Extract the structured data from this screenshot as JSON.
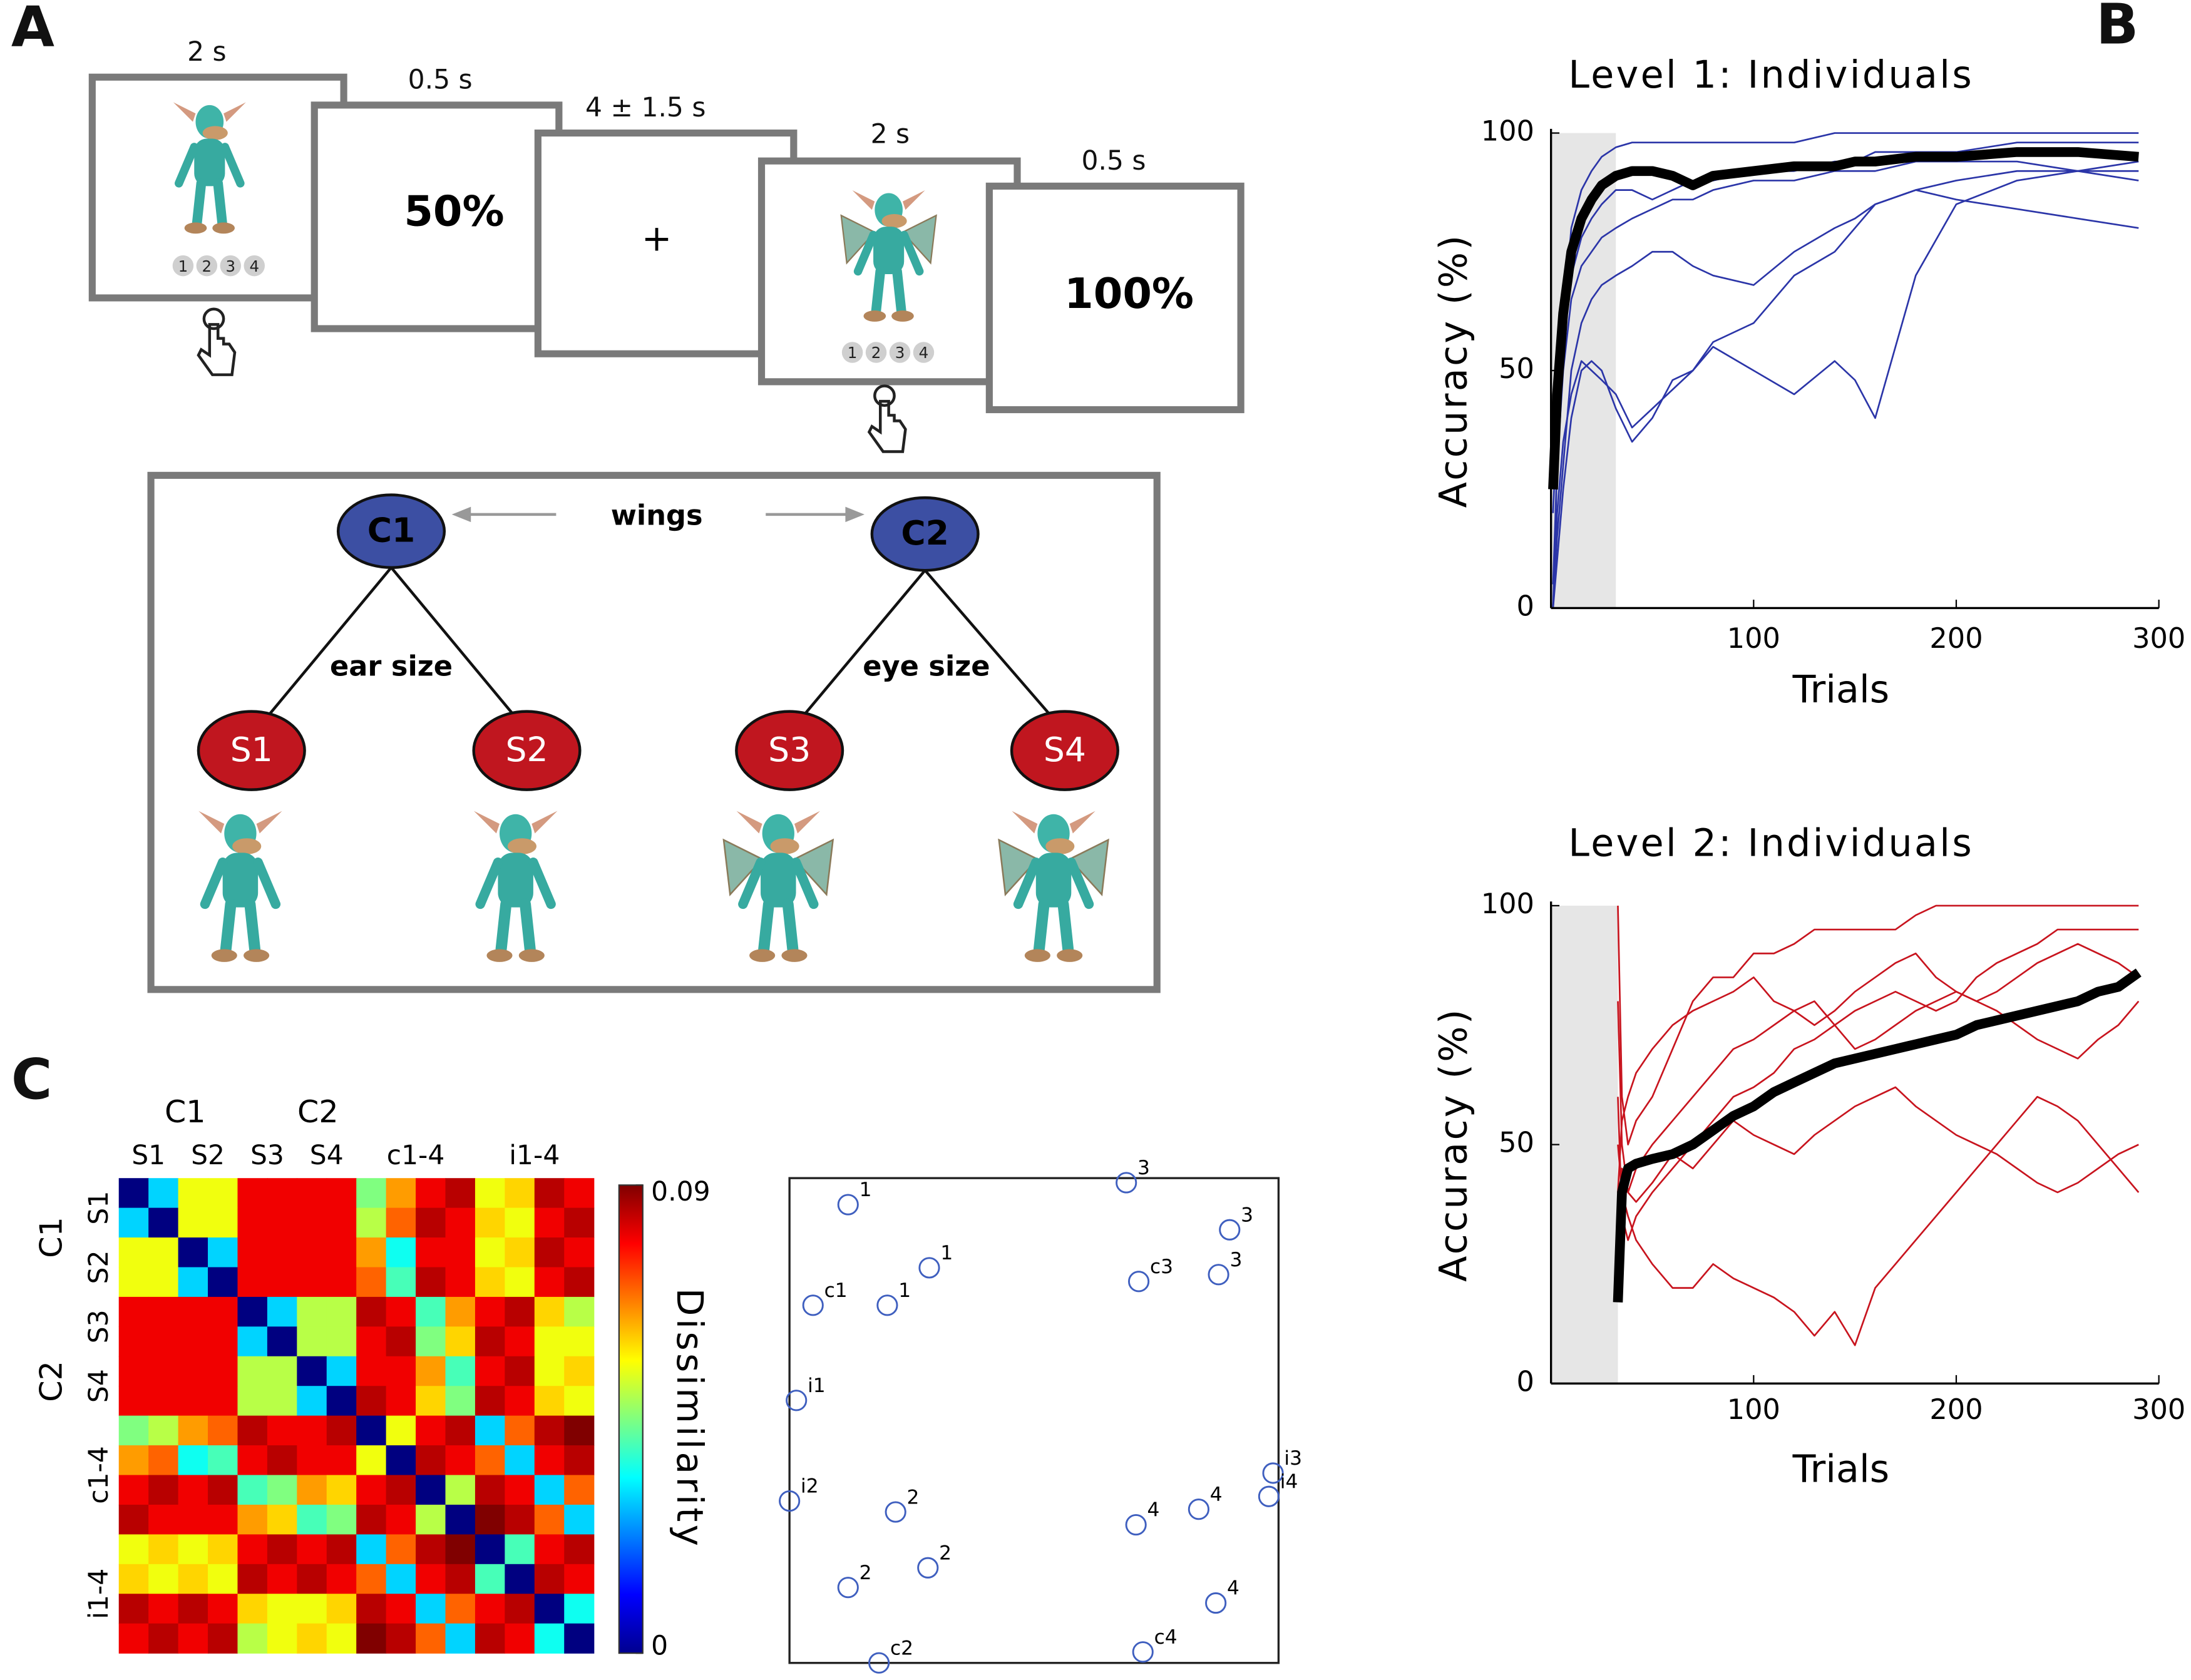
{
  "panel_labels": [
    "A",
    "B",
    "C"
  ],
  "trial": {
    "screens": [
      {
        "duration": "2 s",
        "buttons": [
          "1",
          "2",
          "3",
          "4"
        ]
      },
      {
        "duration": "0.5 s",
        "feedback": "50%"
      },
      {
        "duration": "4 ± 1.5 s",
        "fixation": "+"
      },
      {
        "duration": "2 s",
        "buttons": [
          "1",
          "2",
          "3",
          "4"
        ]
      },
      {
        "duration": "0.5 s",
        "feedback": "100%"
      }
    ]
  },
  "hierarchy": {
    "categories": [
      "C1",
      "C2"
    ],
    "category_feature": "wings",
    "subordinate_features": [
      "ear size",
      "eye size"
    ],
    "subordinates": [
      "S1",
      "S2",
      "S3",
      "S4"
    ]
  },
  "chart_data": [
    {
      "type": "line",
      "title": "Level 1: Individuals",
      "x_label": "Trials",
      "y_label": "Accuracy (%)",
      "xlim": [
        0,
        300
      ],
      "ylim": [
        0,
        100
      ],
      "xticks": [
        100,
        200,
        300
      ],
      "yticks": [
        0,
        50,
        100
      ],
      "shaded_xlim": [
        0,
        32
      ],
      "x": [
        1,
        3,
        6,
        10,
        15,
        20,
        25,
        32,
        40,
        50,
        60,
        70,
        80,
        100,
        120,
        140,
        150,
        160,
        180,
        200,
        230,
        260,
        290
      ],
      "series": [
        {
          "color": "#2b35a8",
          "values": [
            20,
            40,
            55,
            70,
            78,
            82,
            85,
            88,
            88,
            86,
            88,
            90,
            90,
            92,
            92,
            94,
            94,
            96,
            96,
            96,
            98,
            98,
            98
          ]
        },
        {
          "color": "#2b35a8",
          "values": [
            0,
            30,
            50,
            65,
            72,
            75,
            78,
            80,
            82,
            84,
            86,
            86,
            88,
            90,
            90,
            92,
            92,
            92,
            94,
            94,
            94,
            92,
            94
          ]
        },
        {
          "color": "#2b35a8",
          "values": [
            0,
            10,
            25,
            40,
            50,
            52,
            50,
            42,
            35,
            40,
            48,
            50,
            55,
            50,
            45,
            52,
            48,
            40,
            70,
            85,
            90,
            92,
            90
          ]
        },
        {
          "color": "#2b35a8",
          "values": [
            0,
            20,
            35,
            45,
            52,
            50,
            48,
            45,
            38,
            42,
            46,
            50,
            56,
            60,
            70,
            75,
            80,
            85,
            88,
            90,
            92,
            92,
            92
          ]
        },
        {
          "color": "#2b35a8",
          "values": [
            5,
            30,
            60,
            80,
            88,
            92,
            95,
            97,
            98,
            98,
            98,
            98,
            98,
            98,
            98,
            100,
            100,
            100,
            100,
            100,
            100,
            100,
            100
          ]
        },
        {
          "color": "#2b35a8",
          "values": [
            0,
            15,
            30,
            50,
            60,
            65,
            68,
            70,
            72,
            75,
            75,
            72,
            70,
            68,
            75,
            80,
            82,
            85,
            88,
            86,
            84,
            82,
            80
          ]
        },
        {
          "color": "#000000",
          "values": [
            25,
            45,
            62,
            75,
            82,
            86,
            89,
            91,
            92,
            92,
            91,
            89,
            91,
            92,
            93,
            93,
            94,
            94,
            95,
            95,
            96,
            96,
            95
          ]
        }
      ]
    },
    {
      "type": "line",
      "title": "Level 2: Individuals",
      "x_label": "Trials",
      "y_label": "Accuracy (%)",
      "xlim": [
        0,
        300
      ],
      "ylim": [
        0,
        100
      ],
      "xticks": [
        100,
        200,
        300
      ],
      "yticks": [
        0,
        50,
        100
      ],
      "shaded_xlim": [
        0,
        33
      ],
      "x": [
        33,
        35,
        38,
        42,
        50,
        60,
        70,
        80,
        90,
        100,
        110,
        120,
        130,
        140,
        150,
        160,
        170,
        180,
        190,
        200,
        210,
        220,
        230,
        240,
        250,
        260,
        270,
        280,
        290
      ],
      "series": [
        {
          "color": "#c8141e",
          "values": [
            100,
            60,
            50,
            55,
            60,
            70,
            80,
            85,
            85,
            90,
            90,
            92,
            95,
            95,
            95,
            95,
            95,
            98,
            100,
            100,
            100,
            100,
            100,
            100,
            100,
            100,
            100,
            100,
            100
          ]
        },
        {
          "color": "#c8141e",
          "values": [
            60,
            35,
            30,
            35,
            40,
            45,
            50,
            55,
            60,
            62,
            65,
            70,
            72,
            75,
            78,
            80,
            82,
            80,
            78,
            80,
            85,
            88,
            90,
            92,
            95,
            95,
            95,
            95,
            95
          ]
        },
        {
          "color": "#c8141e",
          "values": [
            50,
            40,
            35,
            30,
            25,
            20,
            20,
            25,
            22,
            20,
            18,
            15,
            10,
            15,
            8,
            20,
            25,
            30,
            35,
            40,
            45,
            50,
            55,
            60,
            58,
            55,
            50,
            45,
            40
          ]
        },
        {
          "color": "#c8141e",
          "values": [
            80,
            50,
            40,
            45,
            50,
            55,
            60,
            65,
            70,
            72,
            75,
            78,
            80,
            75,
            70,
            72,
            75,
            78,
            80,
            82,
            80,
            78,
            75,
            72,
            70,
            68,
            72,
            75,
            80
          ]
        },
        {
          "color": "#c8141e",
          "values": [
            30,
            45,
            40,
            38,
            42,
            48,
            45,
            50,
            55,
            52,
            50,
            48,
            52,
            55,
            58,
            60,
            62,
            58,
            55,
            52,
            50,
            48,
            45,
            42,
            40,
            42,
            45,
            48,
            50
          ]
        },
        {
          "color": "#c8141e",
          "values": [
            40,
            55,
            60,
            65,
            70,
            75,
            78,
            80,
            82,
            85,
            80,
            78,
            75,
            78,
            82,
            85,
            88,
            90,
            85,
            82,
            80,
            82,
            85,
            88,
            90,
            92,
            90,
            88,
            85
          ]
        },
        {
          "color": "#000000",
          "values": [
            17,
            40,
            45,
            46,
            47,
            48,
            50,
            53,
            56,
            58,
            61,
            63,
            65,
            67,
            68,
            69,
            70,
            71,
            72,
            73,
            75,
            76,
            77,
            78,
            79,
            80,
            82,
            83,
            86
          ]
        }
      ]
    },
    {
      "type": "heatmap",
      "column_groups": [
        "C1",
        "C2"
      ],
      "row_groups": [
        "C1",
        "C2"
      ],
      "labels": [
        "S1",
        "S2",
        "S3",
        "S4",
        "c1-4",
        "i1-4"
      ],
      "colorbar_label": "Dissimilarity",
      "clim": [
        0,
        0.09
      ],
      "cticks": [
        0,
        0.09
      ],
      "values": [
        [
          0,
          0.03,
          0.055,
          0.055,
          0.08,
          0.08,
          0.08,
          0.08,
          0.045,
          0.065,
          0.08,
          0.085,
          0.055,
          0.06,
          0.085,
          0.08
        ],
        [
          0.03,
          0,
          0.055,
          0.055,
          0.08,
          0.08,
          0.08,
          0.08,
          0.05,
          0.07,
          0.085,
          0.08,
          0.06,
          0.055,
          0.08,
          0.085
        ],
        [
          0.055,
          0.055,
          0,
          0.03,
          0.08,
          0.08,
          0.08,
          0.08,
          0.065,
          0.035,
          0.08,
          0.08,
          0.055,
          0.06,
          0.085,
          0.08
        ],
        [
          0.055,
          0.055,
          0.03,
          0,
          0.08,
          0.08,
          0.08,
          0.08,
          0.07,
          0.04,
          0.085,
          0.08,
          0.06,
          0.055,
          0.08,
          0.085
        ],
        [
          0.08,
          0.08,
          0.08,
          0.08,
          0,
          0.03,
          0.05,
          0.05,
          0.085,
          0.08,
          0.04,
          0.065,
          0.08,
          0.085,
          0.06,
          0.05
        ],
        [
          0.08,
          0.08,
          0.08,
          0.08,
          0.03,
          0,
          0.05,
          0.05,
          0.08,
          0.085,
          0.045,
          0.06,
          0.085,
          0.08,
          0.055,
          0.055
        ],
        [
          0.08,
          0.08,
          0.08,
          0.08,
          0.05,
          0.05,
          0,
          0.03,
          0.08,
          0.08,
          0.065,
          0.04,
          0.08,
          0.085,
          0.055,
          0.06
        ],
        [
          0.08,
          0.08,
          0.08,
          0.08,
          0.05,
          0.05,
          0.03,
          0,
          0.085,
          0.08,
          0.06,
          0.045,
          0.085,
          0.08,
          0.06,
          0.055
        ],
        [
          0.045,
          0.05,
          0.065,
          0.07,
          0.085,
          0.08,
          0.08,
          0.085,
          0,
          0.055,
          0.08,
          0.085,
          0.03,
          0.07,
          0.085,
          0.09
        ],
        [
          0.065,
          0.07,
          0.035,
          0.04,
          0.08,
          0.085,
          0.08,
          0.08,
          0.055,
          0,
          0.085,
          0.08,
          0.07,
          0.03,
          0.08,
          0.085
        ],
        [
          0.08,
          0.085,
          0.08,
          0.085,
          0.04,
          0.045,
          0.065,
          0.06,
          0.08,
          0.085,
          0,
          0.05,
          0.085,
          0.08,
          0.03,
          0.07
        ],
        [
          0.085,
          0.08,
          0.08,
          0.08,
          0.065,
          0.06,
          0.04,
          0.045,
          0.085,
          0.08,
          0.05,
          0,
          0.09,
          0.085,
          0.07,
          0.03
        ],
        [
          0.055,
          0.06,
          0.055,
          0.06,
          0.08,
          0.085,
          0.08,
          0.085,
          0.03,
          0.07,
          0.085,
          0.09,
          0,
          0.04,
          0.08,
          0.085
        ],
        [
          0.06,
          0.055,
          0.06,
          0.055,
          0.085,
          0.08,
          0.085,
          0.08,
          0.07,
          0.03,
          0.08,
          0.085,
          0.04,
          0,
          0.085,
          0.08
        ],
        [
          0.085,
          0.08,
          0.085,
          0.08,
          0.06,
          0.055,
          0.055,
          0.06,
          0.085,
          0.08,
          0.03,
          0.07,
          0.08,
          0.085,
          0,
          0.035
        ],
        [
          0.08,
          0.085,
          0.08,
          0.085,
          0.05,
          0.055,
          0.06,
          0.055,
          0.09,
          0.085,
          0.07,
          0.03,
          0.085,
          0.08,
          0.035,
          0
        ]
      ]
    },
    {
      "type": "scatter",
      "color": "#3f5fbf",
      "xlim": [
        -3,
        103
      ],
      "ylim": [
        -3,
        103
      ],
      "labels": [
        "1",
        "3",
        "3",
        "1",
        "c3",
        "3",
        "c1",
        "1",
        "i1",
        "i3",
        "i2",
        "4",
        "i4",
        "2",
        "4",
        "2",
        "2",
        "4",
        "c4",
        "c2"
      ],
      "x": [
        9.7,
        70.0,
        92.4,
        27.3,
        72.7,
        90.0,
        2.1,
        18.2,
        -1.5,
        101.8,
        -3,
        85.7,
        100.9,
        20.0,
        72.1,
        27.0,
        9.7,
        89.4,
        73.6,
        16.4
      ],
      "values": [
        97.2,
        102,
        91.7,
        83.4,
        80.4,
        81.9,
        75.2,
        75.2,
        54.4,
        38.5,
        32.4,
        30.6,
        33.4,
        30.0,
        27.2,
        17.8,
        13.5,
        10.1,
        -0.6,
        -3
      ]
    }
  ]
}
